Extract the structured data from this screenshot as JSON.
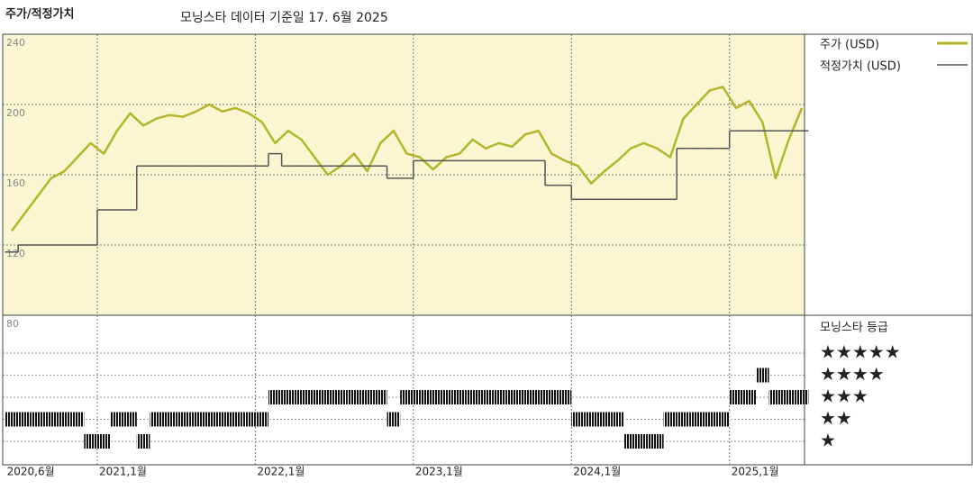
{
  "chart_data": {
    "type": "line",
    "title": "주가/적정가치",
    "subtitle": "모닝스타 데이터 기준일 17. 6월 2025",
    "x": [
      "2020-06",
      "2020-07",
      "2020-08",
      "2020-09",
      "2020-10",
      "2020-11",
      "2020-12",
      "2021-01",
      "2021-02",
      "2021-03",
      "2021-04",
      "2021-05",
      "2021-06",
      "2021-07",
      "2021-08",
      "2021-09",
      "2021-10",
      "2021-11",
      "2021-12",
      "2022-01",
      "2022-02",
      "2022-03",
      "2022-04",
      "2022-05",
      "2022-06",
      "2022-07",
      "2022-08",
      "2022-09",
      "2022-10",
      "2022-11",
      "2022-12",
      "2023-01",
      "2023-02",
      "2023-03",
      "2023-04",
      "2023-05",
      "2023-06",
      "2023-07",
      "2023-08",
      "2023-09",
      "2023-10",
      "2023-11",
      "2023-12",
      "2024-01",
      "2024-02",
      "2024-03",
      "2024-04",
      "2024-05",
      "2024-06",
      "2024-07",
      "2024-08",
      "2024-09",
      "2024-10",
      "2024-11",
      "2024-12",
      "2025-01",
      "2025-02",
      "2025-03",
      "2025-04",
      "2025-05",
      "2025-06"
    ],
    "series": [
      {
        "name": "주가 (USD)",
        "color": "#b3b52a",
        "values": [
          128,
          138,
          148,
          158,
          162,
          170,
          178,
          172,
          185,
          195,
          188,
          192,
          194,
          193,
          196,
          200,
          196,
          198,
          195,
          190,
          178,
          185,
          180,
          170,
          160,
          165,
          172,
          162,
          178,
          185,
          172,
          170,
          163,
          170,
          172,
          180,
          175,
          178,
          176,
          183,
          185,
          172,
          168,
          165,
          155,
          162,
          168,
          175,
          178,
          175,
          170,
          192,
          200,
          208,
          210,
          198,
          202,
          190,
          158,
          180,
          198
        ]
      },
      {
        "name": "적정가치 (USD)",
        "color": "#555555",
        "step": true,
        "values": [
          116,
          120,
          120,
          120,
          120,
          120,
          120,
          140,
          140,
          140,
          165,
          165,
          165,
          165,
          165,
          165,
          165,
          165,
          165,
          165,
          172,
          165,
          165,
          165,
          165,
          165,
          165,
          165,
          165,
          158,
          158,
          168,
          168,
          168,
          168,
          168,
          168,
          168,
          168,
          168,
          168,
          154,
          154,
          146,
          146,
          146,
          146,
          146,
          146,
          146,
          146,
          175,
          175,
          175,
          175,
          185,
          185,
          185,
          185,
          185,
          185
        ]
      }
    ],
    "ratings": {
      "name": "모닝스타 등급",
      "labels": [
        "★",
        "★★",
        "★★★",
        "★★★★",
        "★★★★★"
      ],
      "values": [
        2,
        2,
        2,
        2,
        2,
        2,
        1,
        1,
        2,
        2,
        1,
        2,
        2,
        2,
        2,
        2,
        2,
        2,
        2,
        2,
        3,
        3,
        3,
        3,
        3,
        3,
        3,
        3,
        3,
        2,
        3,
        3,
        3,
        3,
        3,
        3,
        3,
        3,
        3,
        3,
        3,
        3,
        3,
        2,
        2,
        2,
        2,
        1,
        1,
        1,
        2,
        2,
        2,
        2,
        2,
        3,
        3,
        4,
        3,
        3,
        3
      ]
    },
    "ylim": [
      80,
      240
    ],
    "yticks": [
      80,
      120,
      160,
      200,
      240
    ],
    "xticks": [
      {
        "value": "2020-06",
        "label": "2020,6월"
      },
      {
        "value": "2021-01",
        "label": "2021,1월"
      },
      {
        "value": "2022-01",
        "label": "2022,1월"
      },
      {
        "value": "2023-01",
        "label": "2023,1월"
      },
      {
        "value": "2024-01",
        "label": "2024,1월"
      },
      {
        "value": "2025-01",
        "label": "2025,1월"
      }
    ],
    "grid": true
  }
}
